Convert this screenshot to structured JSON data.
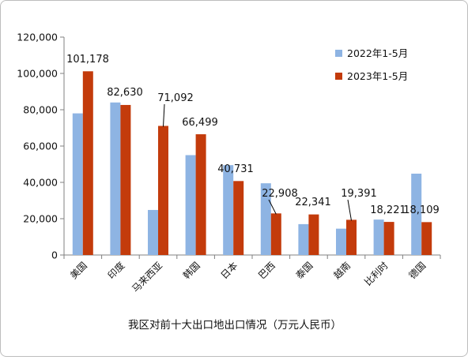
{
  "chart_data": {
    "type": "bar",
    "title": "我区对前十大出口地出口情况（万元人民币）",
    "categories": [
      "美国",
      "印度",
      "马来西亚",
      "韩国",
      "日本",
      "巴西",
      "泰国",
      "越南",
      "比利时",
      "德国"
    ],
    "series": [
      {
        "name": "2022年1-5月",
        "color": "#8eb4e3",
        "values": [
          78000,
          84000,
          24800,
          55000,
          49500,
          39500,
          17000,
          14500,
          19500,
          44800
        ]
      },
      {
        "name": "2023年1-5月",
        "color": "#c33b0b",
        "values": [
          101178,
          82630,
          71092,
          66499,
          40731,
          22908,
          22341,
          19391,
          18221,
          18109
        ]
      }
    ],
    "data_labels": [
      "101,178",
      "82,630",
      "71,092",
      "66,499",
      "40,731",
      "22,908",
      "22,341",
      "19,391",
      "18,221",
      "18,109"
    ],
    "ylim": [
      0,
      120000
    ],
    "yticks": [
      "0",
      "20,000",
      "40,000",
      "60,000",
      "80,000",
      "100,000",
      "120,000"
    ],
    "grid": false,
    "legend": "top-right"
  }
}
